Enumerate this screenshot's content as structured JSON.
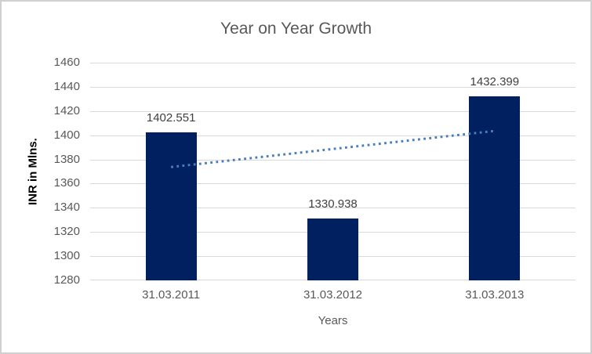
{
  "chart_data": {
    "type": "bar",
    "title": "Year on Year Growth",
    "categories": [
      "31.03.2011",
      "31.03.2012",
      "31.03.2013"
    ],
    "values": [
      1402.551,
      1330.938,
      1432.399
    ],
    "data_labels": [
      "1402.551",
      "1330.938",
      "1432.399"
    ],
    "xlabel": "Years",
    "ylabel": "INR in Mlns.",
    "ylim": [
      1280,
      1460
    ],
    "yticks": [
      1460,
      1440,
      1420,
      1400,
      1380,
      1360,
      1340,
      1320,
      1300,
      1280
    ],
    "grid": true,
    "legend": "none",
    "trendline": {
      "type": "linear",
      "style": "dotted",
      "endpoint_values": [
        1373.705,
        1403.553
      ]
    },
    "colors": {
      "bar": "#002060",
      "trendline": "#4A7EBB",
      "gridline": "#D9D9D9",
      "title_text": "#595959",
      "tick_text": "#595959",
      "data_label_text": "#404040",
      "y_axis_title_text": "#000000",
      "background": "#FFFFFF",
      "border": "#D0D0D0"
    }
  }
}
